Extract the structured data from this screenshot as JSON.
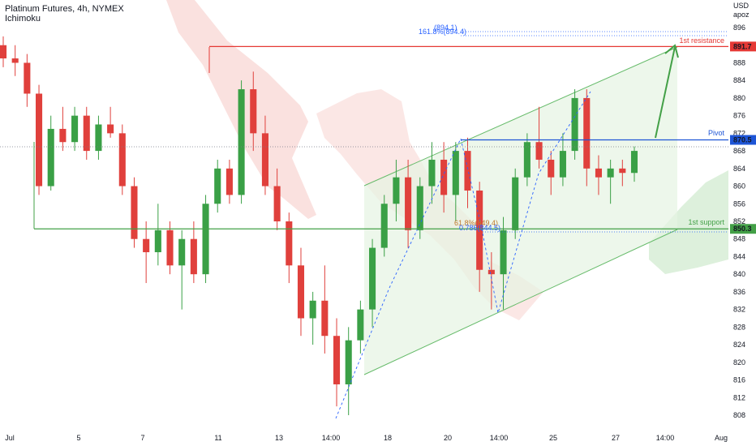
{
  "header": {
    "title": "Platinum Futures, 4h, NYMEX",
    "indicator": "Ichimoku"
  },
  "axis": {
    "currency": "USD",
    "currency_sub": "apoz",
    "y_ticks": [
      896,
      892,
      888,
      884,
      880,
      876,
      872,
      868,
      864,
      860,
      856,
      852,
      848,
      844,
      840,
      836,
      832,
      828,
      824,
      820,
      816,
      812,
      808
    ],
    "x_ticks": [
      "Jul",
      "5",
      "7",
      "11",
      "13",
      "14:00",
      "18",
      "20",
      "14:00",
      "25",
      "27",
      "14:00",
      "Aug"
    ]
  },
  "levels": {
    "resistance": {
      "name": "1st resistance",
      "value": 891.7,
      "label": "891.7",
      "color": "#e53935"
    },
    "pivot": {
      "name": "Pivot",
      "value": 870.5,
      "label": "870.5",
      "color": "#1e55d6"
    },
    "support": {
      "name": "1st support",
      "value": 850.3,
      "label": "850.3",
      "color": "#43a047"
    }
  },
  "fib_labels": {
    "ext_top": "161.8%(894.4)",
    "ext_top_short": "(894.1)",
    "retr_a": "61.8%(849.4)",
    "retr_b": "0.786(844.5)"
  },
  "colors": {
    "up": "#26a69a",
    "up_candle": "#3aa046",
    "down": "#e0403c",
    "channel": "#66bb6a",
    "cloud_bear": "#f8d7d4",
    "cloud_bull": "#d9eed8"
  },
  "chart_data": {
    "type": "candlestick",
    "title": "Platinum Futures, 4h, NYMEX",
    "ylim": [
      806,
      898
    ],
    "y_unit": "USD",
    "ohlc_approx": [
      [
        892,
        894,
        887,
        889
      ],
      [
        889,
        892,
        885,
        888
      ],
      [
        888,
        890,
        878,
        881
      ],
      [
        881,
        883,
        858,
        860
      ],
      [
        860,
        876,
        859,
        873
      ],
      [
        873,
        878,
        868,
        870
      ],
      [
        870,
        878,
        868,
        876
      ],
      [
        876,
        878,
        866,
        868
      ],
      [
        868,
        876,
        866,
        874
      ],
      [
        874,
        878,
        871,
        872
      ],
      [
        872,
        874,
        858,
        860
      ],
      [
        860,
        862,
        846,
        848
      ],
      [
        848,
        852,
        838,
        845
      ],
      [
        845,
        856,
        842,
        850
      ],
      [
        850,
        852,
        840,
        842
      ],
      [
        842,
        850,
        832,
        848
      ],
      [
        848,
        852,
        838,
        840
      ],
      [
        840,
        858,
        838,
        856
      ],
      [
        856,
        866,
        854,
        864
      ],
      [
        864,
        866,
        856,
        858
      ],
      [
        858,
        884,
        856,
        882
      ],
      [
        882,
        886,
        868,
        872
      ],
      [
        872,
        876,
        858,
        860
      ],
      [
        860,
        864,
        850,
        852
      ],
      [
        852,
        854,
        838,
        842
      ],
      [
        842,
        846,
        826,
        830
      ],
      [
        830,
        836,
        824,
        834
      ],
      [
        834,
        842,
        822,
        826
      ],
      [
        826,
        830,
        810,
        815
      ],
      [
        815,
        828,
        808,
        825
      ],
      [
        825,
        834,
        822,
        832
      ],
      [
        832,
        848,
        828,
        846
      ],
      [
        846,
        858,
        844,
        856
      ],
      [
        856,
        866,
        852,
        862
      ],
      [
        862,
        866,
        846,
        850
      ],
      [
        850,
        862,
        848,
        860
      ],
      [
        860,
        870,
        856,
        866
      ],
      [
        866,
        870,
        854,
        858
      ],
      [
        858,
        870,
        852,
        868
      ],
      [
        868,
        871,
        855,
        859
      ],
      [
        859,
        861,
        836,
        841
      ],
      [
        841,
        845,
        832,
        840
      ],
      [
        840,
        853,
        832,
        850
      ],
      [
        850,
        864,
        848,
        862
      ],
      [
        862,
        872,
        860,
        870
      ],
      [
        870,
        878,
        864,
        866
      ],
      [
        866,
        868,
        858,
        862
      ],
      [
        862,
        872,
        860,
        868
      ],
      [
        868,
        882,
        866,
        880
      ],
      [
        880,
        882,
        860,
        864
      ],
      [
        864,
        867,
        858,
        862
      ],
      [
        862,
        866,
        856,
        864
      ],
      [
        864,
        866,
        860,
        863
      ],
      [
        863,
        869,
        861,
        868
      ]
    ],
    "horizontal_levels": [
      {
        "name": "1st resistance",
        "value": 891.7
      },
      {
        "name": "Pivot",
        "value": 870.5
      },
      {
        "name": "1st support",
        "value": 850.3
      }
    ],
    "channel": "ascending",
    "grid": false,
    "legend": "none"
  }
}
